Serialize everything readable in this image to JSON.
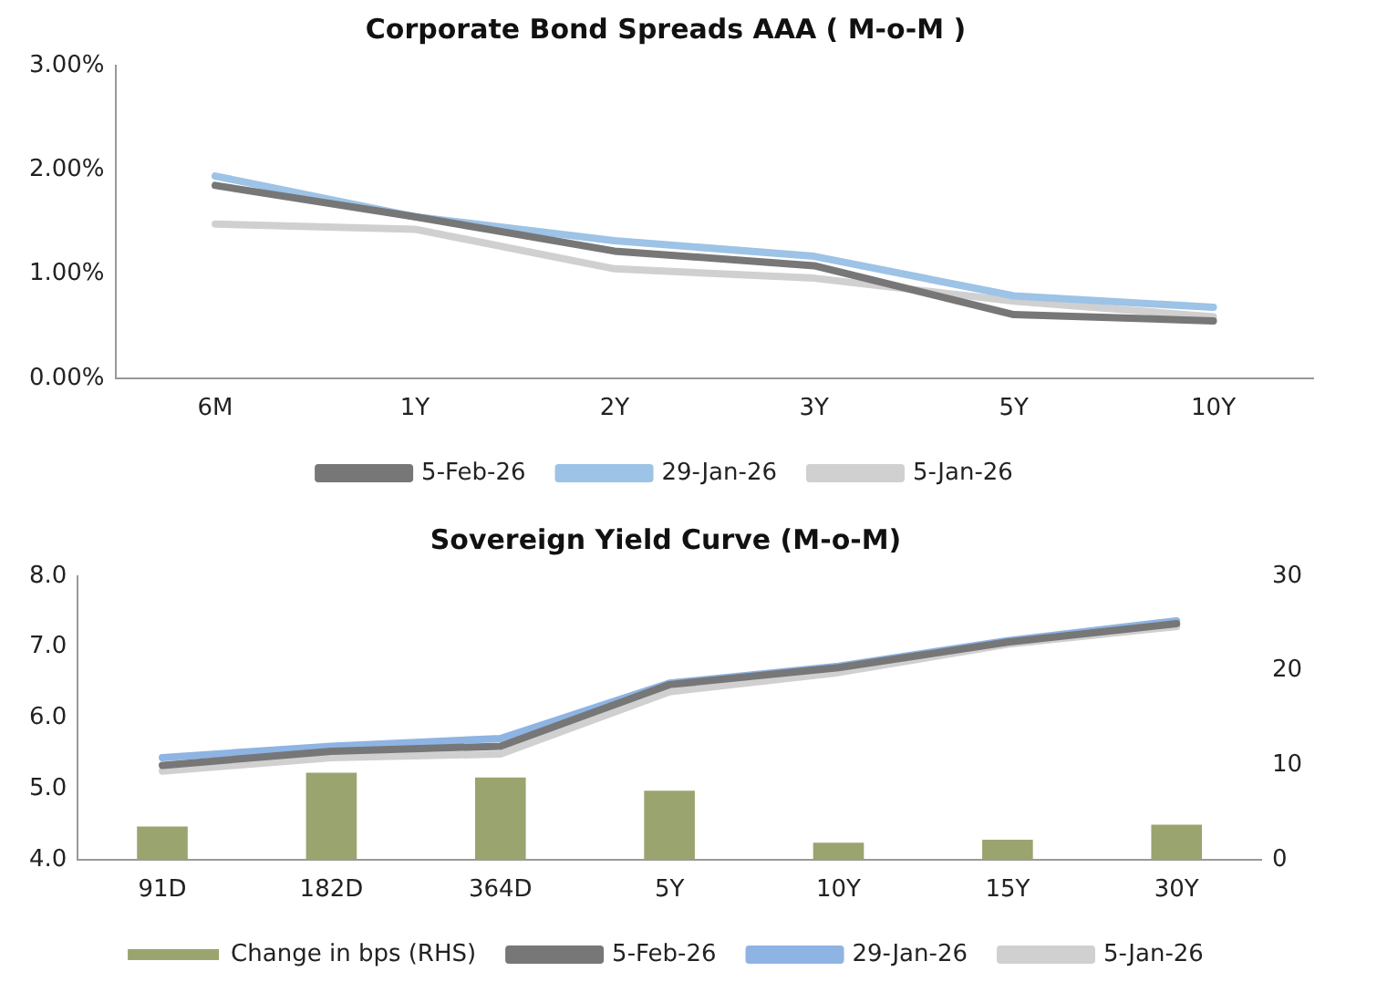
{
  "chart_data": [
    {
      "type": "line",
      "title": "Corporate Bond Spreads AAA ( M-o-M )",
      "categories": [
        "6M",
        "1Y",
        "2Y",
        "3Y",
        "5Y",
        "10Y"
      ],
      "series": [
        {
          "name": "5-Feb-26",
          "color": "#777777",
          "values": [
            1.85,
            1.55,
            1.22,
            1.08,
            0.61,
            0.55
          ]
        },
        {
          "name": "29-Jan-26",
          "color": "#9dc3e6",
          "values": [
            1.94,
            1.55,
            1.32,
            1.17,
            0.79,
            0.68
          ]
        },
        {
          "name": "5-Jan-26",
          "color": "#d0d0d0",
          "values": [
            1.48,
            1.43,
            1.05,
            0.96,
            0.74,
            0.59
          ]
        }
      ],
      "ylim": [
        0,
        3
      ],
      "yticks": [
        {
          "value": 0,
          "label": "0.00%"
        },
        {
          "value": 1,
          "label": "1.00%"
        },
        {
          "value": 2,
          "label": "2.00%"
        },
        {
          "value": 3,
          "label": "3.00%"
        }
      ],
      "grid": false,
      "legend": "bottom",
      "marker": "none",
      "line_style": "solid"
    },
    {
      "type": "line",
      "title": "Sovereign Yield Curve (M-o-M)",
      "categories": [
        "91D",
        "182D",
        "364D",
        "5Y",
        "10Y",
        "15Y",
        "30Y"
      ],
      "series": [
        {
          "name": "Change in bps (RHS)",
          "type": "bar",
          "axis": "y2",
          "color": "#9aa46f",
          "values": [
            3.5,
            9.2,
            8.7,
            7.3,
            1.8,
            2.1,
            3.7
          ]
        },
        {
          "name": "5-Feb-26",
          "color": "#777777",
          "values": [
            5.33,
            5.53,
            5.6,
            6.47,
            6.71,
            7.07,
            7.33
          ]
        },
        {
          "name": "29-Jan-26",
          "color": "#8eb4e3",
          "values": [
            5.44,
            5.6,
            5.71,
            6.49,
            6.73,
            7.09,
            7.37
          ]
        },
        {
          "name": "5-Jan-26",
          "color": "#d0d0d0",
          "values": [
            5.25,
            5.44,
            5.49,
            6.37,
            6.64,
            7.04,
            7.29
          ]
        }
      ],
      "ylim": [
        4,
        8
      ],
      "yticks": [
        {
          "value": 4,
          "label": "4.0"
        },
        {
          "value": 5,
          "label": "5.0"
        },
        {
          "value": 6,
          "label": "6.0"
        },
        {
          "value": 7,
          "label": "7.0"
        },
        {
          "value": 8,
          "label": "8.0"
        }
      ],
      "y2lim": [
        0,
        30
      ],
      "y2ticks": [
        0,
        10,
        20,
        30
      ],
      "grid": false,
      "legend": "bottom",
      "marker": "none",
      "line_style": "solid"
    }
  ]
}
